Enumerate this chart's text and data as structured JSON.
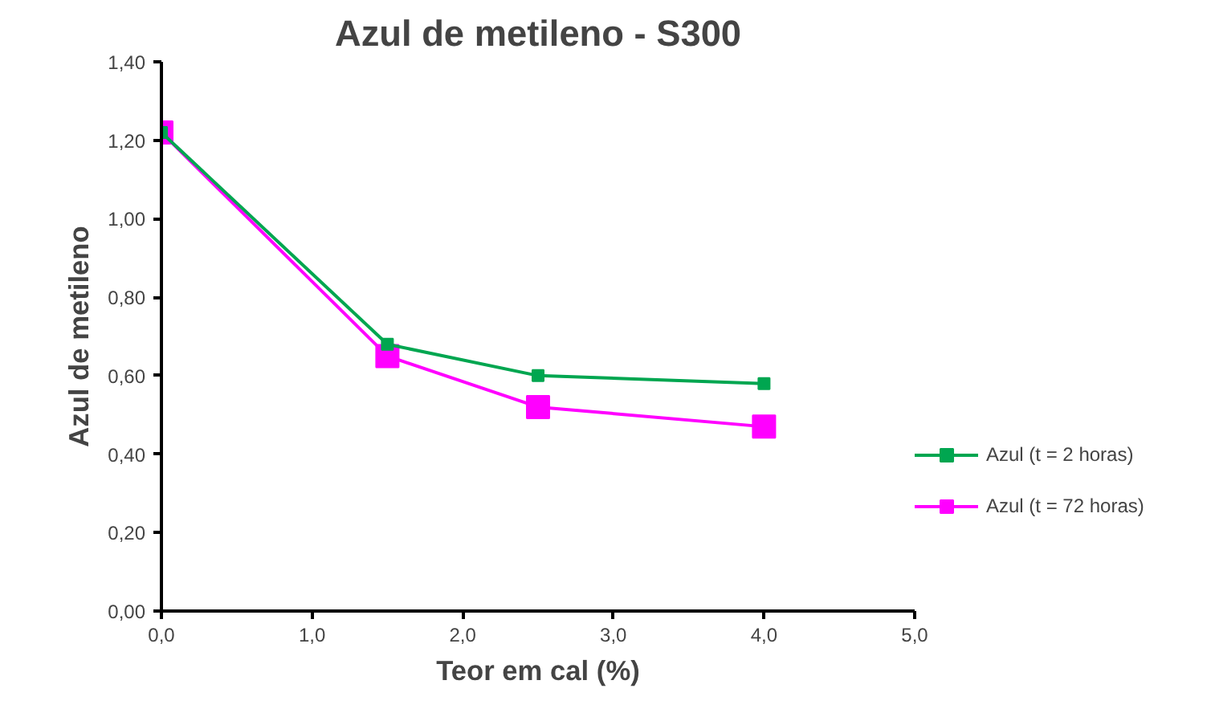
{
  "chart_data": {
    "type": "line",
    "title": "Azul de metileno - S300",
    "xlabel": "Teor em cal (%)",
    "ylabel": "Azul de metileno",
    "x": [
      0,
      1.5,
      2.5,
      4.0
    ],
    "series": [
      {
        "name": "Azul (t = 2 horas)",
        "color": "#00a650",
        "values": [
          1.22,
          0.68,
          0.6,
          0.58
        ],
        "marker": "square"
      },
      {
        "name": "Azul (t = 72 horas)",
        "color": "#ff00ff",
        "values": [
          1.22,
          0.65,
          0.52,
          0.47
        ],
        "marker": "square"
      }
    ],
    "xlim": [
      0,
      5
    ],
    "ylim": [
      0,
      1.4
    ],
    "xticks": [
      {
        "value": 0,
        "label": "0,0"
      },
      {
        "value": 1,
        "label": "1,0"
      },
      {
        "value": 2,
        "label": "2,0"
      },
      {
        "value": 3,
        "label": "3,0"
      },
      {
        "value": 4,
        "label": "4,0"
      },
      {
        "value": 5,
        "label": "5,0"
      }
    ],
    "yticks": [
      {
        "value": 0,
        "label": "0,00"
      },
      {
        "value": 0.2,
        "label": "0,20"
      },
      {
        "value": 0.4,
        "label": "0,40"
      },
      {
        "value": 0.6,
        "label": "0,60"
      },
      {
        "value": 0.8,
        "label": "0,80"
      },
      {
        "value": 1.0,
        "label": "1,00"
      },
      {
        "value": 1.2,
        "label": "1,20"
      },
      {
        "value": 1.4,
        "label": "1,40"
      }
    ],
    "grid": false,
    "legend": "right",
    "line_style": "solid"
  }
}
